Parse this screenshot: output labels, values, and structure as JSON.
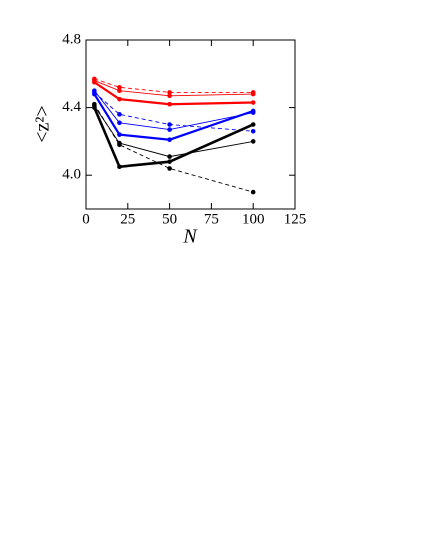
{
  "chart_data": {
    "type": "line",
    "xlabel": "N",
    "ylabel": "<z²>",
    "x": [
      5,
      20,
      50,
      100
    ],
    "xlim": [
      0,
      125
    ],
    "xticks": [
      0,
      25,
      50,
      75,
      100,
      125
    ],
    "ylim": [
      3.8,
      4.8
    ],
    "yticks": [
      {
        "value": 4,
        "label": "4.0"
      },
      {
        "value": 4.4,
        "label": "4.4"
      },
      {
        "value": 4.8,
        "label": "4.8"
      }
    ],
    "series": [
      {
        "color": "#ff0000",
        "line_width": 2.2,
        "dashed": false,
        "values": [
          4.55,
          4.45,
          4.42,
          4.43
        ]
      },
      {
        "color": "#ff0000",
        "line_width": 0.9,
        "dashed": false,
        "values": [
          4.56,
          4.5,
          4.47,
          4.48
        ]
      },
      {
        "color": "#ff0000",
        "line_width": 0.9,
        "dashed": true,
        "values": [
          4.57,
          4.52,
          4.49,
          4.49
        ]
      },
      {
        "color": "#0000ff",
        "line_width": 2.2,
        "dashed": false,
        "values": [
          4.48,
          4.24,
          4.21,
          4.38
        ]
      },
      {
        "color": "#0000ff",
        "line_width": 0.9,
        "dashed": false,
        "values": [
          4.5,
          4.31,
          4.27,
          4.37
        ]
      },
      {
        "color": "#0000ff",
        "line_width": 0.9,
        "dashed": true,
        "values": [
          4.49,
          4.36,
          4.3,
          4.26
        ]
      },
      {
        "color": "#000000",
        "line_width": 2.6,
        "dashed": false,
        "values": [
          4.4,
          4.05,
          4.08,
          4.3
        ]
      },
      {
        "color": "#000000",
        "line_width": 0.9,
        "dashed": false,
        "values": [
          4.41,
          4.19,
          4.11,
          4.2
        ]
      },
      {
        "color": "#000000",
        "line_width": 0.9,
        "dashed": true,
        "values": [
          4.42,
          4.18,
          4.04,
          3.9
        ]
      }
    ]
  }
}
